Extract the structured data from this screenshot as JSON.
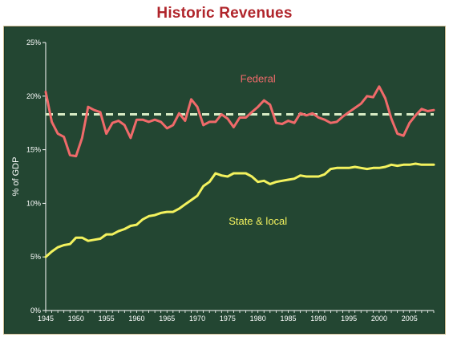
{
  "title": "Historic Revenues",
  "colors": {
    "title": "#b0252b",
    "background": "#234632",
    "federal": "#f06a6a",
    "state_local": "#f3f25e",
    "average": "#d8ecc5",
    "axis": "#ffffff"
  },
  "chart_data": {
    "type": "line",
    "title": "",
    "xlabel": "",
    "ylabel": "% of GDP",
    "xlim": [
      1945,
      2009
    ],
    "ylim": [
      0,
      25
    ],
    "x_ticks": [
      1945,
      1950,
      1955,
      1960,
      1965,
      1970,
      1975,
      1980,
      1985,
      1990,
      1995,
      2000,
      2005
    ],
    "y_ticks": [
      0,
      5,
      10,
      15,
      20,
      25
    ],
    "y_tick_labels": [
      "0%",
      "5%",
      "10%",
      "15%",
      "20%",
      "25%"
    ],
    "grid": false,
    "legend": "none",
    "x": [
      1945,
      1946,
      1947,
      1948,
      1949,
      1950,
      1951,
      1952,
      1953,
      1954,
      1955,
      1956,
      1957,
      1958,
      1959,
      1960,
      1961,
      1962,
      1963,
      1964,
      1965,
      1966,
      1967,
      1968,
      1969,
      1970,
      1971,
      1972,
      1973,
      1974,
      1975,
      1976,
      1977,
      1978,
      1979,
      1980,
      1981,
      1982,
      1983,
      1984,
      1985,
      1986,
      1987,
      1988,
      1989,
      1990,
      1991,
      1992,
      1993,
      1994,
      1995,
      1996,
      1997,
      1998,
      1999,
      2000,
      2001,
      2002,
      2003,
      2004,
      2005,
      2006,
      2007,
      2008,
      2009
    ],
    "series": [
      {
        "name": "Federal",
        "values": [
          20.4,
          17.6,
          16.5,
          16.2,
          14.5,
          14.4,
          16.1,
          19.0,
          18.7,
          18.5,
          16.5,
          17.5,
          17.7,
          17.3,
          16.1,
          17.8,
          17.8,
          17.6,
          17.8,
          17.6,
          17.0,
          17.3,
          18.4,
          17.7,
          19.7,
          19.0,
          17.3,
          17.6,
          17.6,
          18.3,
          17.9,
          17.1,
          18.0,
          18.0,
          18.5,
          19.0,
          19.6,
          19.2,
          17.5,
          17.4,
          17.7,
          17.5,
          18.4,
          18.2,
          18.4,
          18.0,
          17.8,
          17.5,
          17.6,
          18.1,
          18.5,
          18.9,
          19.3,
          20.0,
          19.9,
          20.9,
          19.8,
          17.9,
          16.5,
          16.3,
          17.5,
          18.2,
          18.8,
          18.6,
          18.7
        ],
        "label_position": [
          1980,
          21.3
        ]
      },
      {
        "name": "State & local",
        "values": [
          5.0,
          5.5,
          5.9,
          6.1,
          6.2,
          6.8,
          6.8,
          6.5,
          6.6,
          6.7,
          7.1,
          7.1,
          7.4,
          7.6,
          7.9,
          8.0,
          8.5,
          8.8,
          8.9,
          9.1,
          9.2,
          9.2,
          9.5,
          9.9,
          10.3,
          10.7,
          11.6,
          12.0,
          12.8,
          12.6,
          12.5,
          12.8,
          12.8,
          12.8,
          12.5,
          12.0,
          12.1,
          11.8,
          12.0,
          12.1,
          12.2,
          12.3,
          12.6,
          12.5,
          12.5,
          12.5,
          12.7,
          13.2,
          13.3,
          13.3,
          13.3,
          13.4,
          13.3,
          13.2,
          13.3,
          13.3,
          13.4,
          13.6,
          13.5,
          13.6,
          13.6,
          13.7,
          13.6,
          13.6,
          13.6
        ],
        "label_position": [
          1980,
          8.0
        ]
      }
    ],
    "reference_lines": [
      {
        "type": "dashed-horizontal",
        "y": 18.3,
        "x_range": [
          1945,
          2009
        ]
      }
    ]
  }
}
